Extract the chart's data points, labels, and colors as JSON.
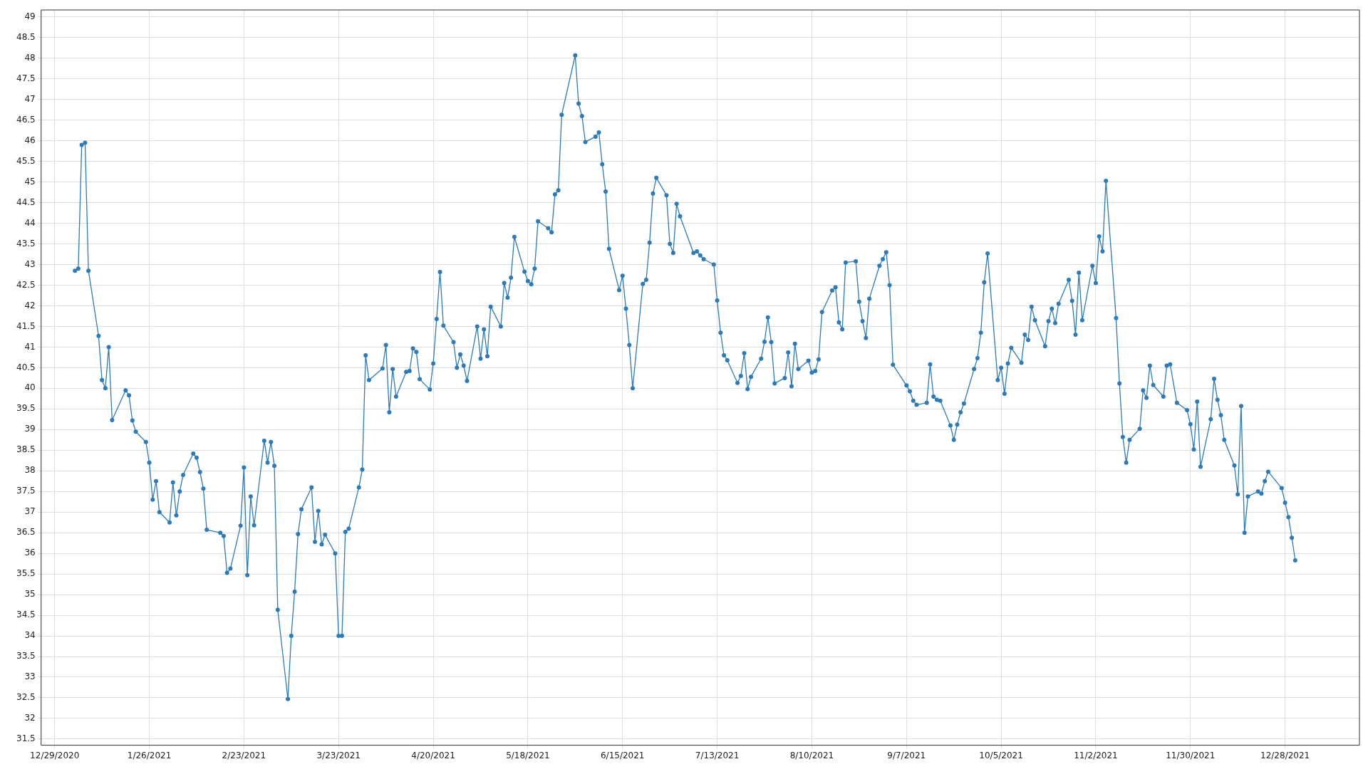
{
  "chart_data": {
    "type": "line",
    "marker": "circle",
    "grid": true,
    "xlim": [
      "2020-12-25",
      "2022-01-19"
    ],
    "xticks": [
      {
        "value": "2020-12-29",
        "label": "12/29/2020"
      },
      {
        "value": "2021-01-26",
        "label": "1/26/2021"
      },
      {
        "value": "2021-02-23",
        "label": "2/23/2021"
      },
      {
        "value": "2021-03-23",
        "label": "3/23/2021"
      },
      {
        "value": "2021-04-20",
        "label": "4/20/2021"
      },
      {
        "value": "2021-05-18",
        "label": "5/18/2021"
      },
      {
        "value": "2021-06-15",
        "label": "6/15/2021"
      },
      {
        "value": "2021-07-13",
        "label": "7/13/2021"
      },
      {
        "value": "2021-08-10",
        "label": "8/10/2021"
      },
      {
        "value": "2021-09-07",
        "label": "9/7/2021"
      },
      {
        "value": "2021-10-05",
        "label": "10/5/2021"
      },
      {
        "value": "2021-11-02",
        "label": "11/2/2021"
      },
      {
        "value": "2021-11-30",
        "label": "11/30/2021"
      },
      {
        "value": "2021-12-28",
        "label": "12/28/2021"
      }
    ],
    "ylim": [
      31.35,
      49.17
    ],
    "yticks": [
      31.5,
      32,
      32.5,
      33,
      33.5,
      34,
      34.5,
      35,
      35.5,
      36,
      36.5,
      37,
      37.5,
      38,
      38.5,
      39,
      39.5,
      40,
      40.5,
      41,
      41.5,
      42,
      42.5,
      43,
      43.5,
      44,
      44.5,
      45,
      45.5,
      46,
      46.5,
      47,
      47.5,
      48,
      48.5,
      49
    ],
    "series": [
      {
        "color": "#2b7bba",
        "x": [
          "2021-01-04",
          "2021-01-05",
          "2021-01-06",
          "2021-01-07",
          "2021-01-08",
          "2021-01-11",
          "2021-01-12",
          "2021-01-13",
          "2021-01-14",
          "2021-01-15",
          "2021-01-19",
          "2021-01-20",
          "2021-01-21",
          "2021-01-22",
          "2021-01-25",
          "2021-01-26",
          "2021-01-27",
          "2021-01-28",
          "2021-01-29",
          "2021-02-01",
          "2021-02-02",
          "2021-02-03",
          "2021-02-04",
          "2021-02-05",
          "2021-02-08",
          "2021-02-09",
          "2021-02-10",
          "2021-02-11",
          "2021-02-12",
          "2021-02-16",
          "2021-02-17",
          "2021-02-18",
          "2021-02-19",
          "2021-02-22",
          "2021-02-23",
          "2021-02-24",
          "2021-02-25",
          "2021-02-26",
          "2021-03-01",
          "2021-03-02",
          "2021-03-03",
          "2021-03-04",
          "2021-03-05",
          "2021-03-08",
          "2021-03-09",
          "2021-03-10",
          "2021-03-11",
          "2021-03-12",
          "2021-03-15",
          "2021-03-16",
          "2021-03-17",
          "2021-03-18",
          "2021-03-19",
          "2021-03-22",
          "2021-03-23",
          "2021-03-24",
          "2021-03-25",
          "2021-03-26",
          "2021-03-29",
          "2021-03-30",
          "2021-03-31",
          "2021-04-01",
          "2021-04-05",
          "2021-04-06",
          "2021-04-07",
          "2021-04-08",
          "2021-04-09",
          "2021-04-12",
          "2021-04-13",
          "2021-04-14",
          "2021-04-15",
          "2021-04-16",
          "2021-04-19",
          "2021-04-20",
          "2021-04-21",
          "2021-04-22",
          "2021-04-23",
          "2021-04-26",
          "2021-04-27",
          "2021-04-28",
          "2021-04-29",
          "2021-04-30",
          "2021-05-03",
          "2021-05-04",
          "2021-05-05",
          "2021-05-06",
          "2021-05-07",
          "2021-05-10",
          "2021-05-11",
          "2021-05-12",
          "2021-05-13",
          "2021-05-14",
          "2021-05-17",
          "2021-05-18",
          "2021-05-19",
          "2021-05-20",
          "2021-05-21",
          "2021-05-24",
          "2021-05-25",
          "2021-05-26",
          "2021-05-27",
          "2021-05-28",
          "2021-06-01",
          "2021-06-02",
          "2021-06-03",
          "2021-06-04",
          "2021-06-07",
          "2021-06-08",
          "2021-06-09",
          "2021-06-10",
          "2021-06-11",
          "2021-06-14",
          "2021-06-15",
          "2021-06-16",
          "2021-06-17",
          "2021-06-18",
          "2021-06-21",
          "2021-06-22",
          "2021-06-23",
          "2021-06-24",
          "2021-06-25",
          "2021-06-28",
          "2021-06-29",
          "2021-06-30",
          "2021-07-01",
          "2021-07-02",
          "2021-07-06",
          "2021-07-07",
          "2021-07-08",
          "2021-07-09",
          "2021-07-12",
          "2021-07-13",
          "2021-07-14",
          "2021-07-15",
          "2021-07-16",
          "2021-07-19",
          "2021-07-20",
          "2021-07-21",
          "2021-07-22",
          "2021-07-23",
          "2021-07-26",
          "2021-07-27",
          "2021-07-28",
          "2021-07-29",
          "2021-07-30",
          "2021-08-02",
          "2021-08-03",
          "2021-08-04",
          "2021-08-05",
          "2021-08-06",
          "2021-08-09",
          "2021-08-10",
          "2021-08-11",
          "2021-08-12",
          "2021-08-13",
          "2021-08-16",
          "2021-08-17",
          "2021-08-18",
          "2021-08-19",
          "2021-08-20",
          "2021-08-23",
          "2021-08-24",
          "2021-08-25",
          "2021-08-26",
          "2021-08-27",
          "2021-08-30",
          "2021-08-31",
          "2021-09-01",
          "2021-09-02",
          "2021-09-03",
          "2021-09-07",
          "2021-09-08",
          "2021-09-09",
          "2021-09-10",
          "2021-09-13",
          "2021-09-14",
          "2021-09-15",
          "2021-09-16",
          "2021-09-17",
          "2021-09-20",
          "2021-09-21",
          "2021-09-22",
          "2021-09-23",
          "2021-09-24",
          "2021-09-27",
          "2021-09-28",
          "2021-09-29",
          "2021-09-30",
          "2021-10-01",
          "2021-10-04",
          "2021-10-05",
          "2021-10-06",
          "2021-10-07",
          "2021-10-08",
          "2021-10-11",
          "2021-10-12",
          "2021-10-13",
          "2021-10-14",
          "2021-10-15",
          "2021-10-18",
          "2021-10-19",
          "2021-10-20",
          "2021-10-21",
          "2021-10-22",
          "2021-10-25",
          "2021-10-26",
          "2021-10-27",
          "2021-10-28",
          "2021-10-29",
          "2021-11-01",
          "2021-11-02",
          "2021-11-03",
          "2021-11-04",
          "2021-11-05",
          "2021-11-08",
          "2021-11-09",
          "2021-11-10",
          "2021-11-11",
          "2021-11-12",
          "2021-11-15",
          "2021-11-16",
          "2021-11-17",
          "2021-11-18",
          "2021-11-19",
          "2021-11-22",
          "2021-11-23",
          "2021-11-24",
          "2021-11-26",
          "2021-11-29",
          "2021-11-30",
          "2021-12-01",
          "2021-12-02",
          "2021-12-03",
          "2021-12-06",
          "2021-12-07",
          "2021-12-08",
          "2021-12-09",
          "2021-12-10",
          "2021-12-13",
          "2021-12-14",
          "2021-12-15",
          "2021-12-16",
          "2021-12-17",
          "2021-12-20",
          "2021-12-21",
          "2021-12-22",
          "2021-12-23",
          "2021-12-27",
          "2021-12-28",
          "2021-12-29",
          "2021-12-30",
          "2021-12-31"
        ],
        "values": [
          42.85,
          42.9,
          45.9,
          45.95,
          42.85,
          41.27,
          40.2,
          40.0,
          41.0,
          39.23,
          39.95,
          39.83,
          39.22,
          38.95,
          38.7,
          38.2,
          37.3,
          37.75,
          37.0,
          36.75,
          37.72,
          36.92,
          37.5,
          37.9,
          38.42,
          38.32,
          37.97,
          37.57,
          36.57,
          36.5,
          36.42,
          35.53,
          35.63,
          36.67,
          38.08,
          35.47,
          37.38,
          36.68,
          38.73,
          38.2,
          38.7,
          38.12,
          34.63,
          32.47,
          34.0,
          35.07,
          36.47,
          37.07,
          37.6,
          36.28,
          37.03,
          36.22,
          36.45,
          36.0,
          34.0,
          34.0,
          36.52,
          36.6,
          37.6,
          38.03,
          40.8,
          40.2,
          40.48,
          41.05,
          39.42,
          40.47,
          39.8,
          40.4,
          40.42,
          40.97,
          40.88,
          40.22,
          39.97,
          40.6,
          41.68,
          42.82,
          41.52,
          41.12,
          40.5,
          40.82,
          40.55,
          40.18,
          41.5,
          40.72,
          41.43,
          40.78,
          41.98,
          41.5,
          42.55,
          42.2,
          42.68,
          43.67,
          42.83,
          42.6,
          42.52,
          42.9,
          44.05,
          43.88,
          43.78,
          44.7,
          44.8,
          46.63,
          48.07,
          46.9,
          46.6,
          45.97,
          46.1,
          46.2,
          45.43,
          44.77,
          43.38,
          42.38,
          42.73,
          41.93,
          41.05,
          40.0,
          42.53,
          42.63,
          43.53,
          44.72,
          45.1,
          44.68,
          43.5,
          43.28,
          44.47,
          44.17,
          43.28,
          43.32,
          43.22,
          43.13,
          43.0,
          42.13,
          41.35,
          40.8,
          40.68,
          40.13,
          40.3,
          40.85,
          39.98,
          40.28,
          40.72,
          41.13,
          41.72,
          41.12,
          40.12,
          40.25,
          40.87,
          40.05,
          41.08,
          40.47,
          40.67,
          40.38,
          40.42,
          40.7,
          41.85,
          42.37,
          42.45,
          41.6,
          41.43,
          43.05,
          43.08,
          42.1,
          41.63,
          41.22,
          42.17,
          42.97,
          43.13,
          43.3,
          42.5,
          40.57,
          40.07,
          39.93,
          39.7,
          39.6,
          39.65,
          40.58,
          39.8,
          39.72,
          39.7,
          39.1,
          38.75,
          39.12,
          39.42,
          39.63,
          40.47,
          40.73,
          41.35,
          42.57,
          43.27,
          40.2,
          40.5,
          39.87,
          40.6,
          40.98,
          40.62,
          41.3,
          41.17,
          41.98,
          41.65,
          41.02,
          41.63,
          41.93,
          41.58,
          42.05,
          42.63,
          42.12,
          41.3,
          42.8,
          41.65,
          42.97,
          42.55,
          43.68,
          43.32,
          45.03,
          41.7,
          40.12,
          38.82,
          38.2,
          38.75,
          39.02,
          39.95,
          39.77,
          40.55,
          40.08,
          39.8,
          40.55,
          40.58,
          39.65,
          39.47,
          39.13,
          38.52,
          39.68,
          38.1,
          39.25,
          40.23,
          39.72,
          39.35,
          38.75,
          38.13,
          37.43,
          39.57,
          36.5,
          37.38,
          37.5,
          37.45,
          37.75,
          37.98,
          37.58,
          37.23,
          36.88,
          36.38,
          35.83
        ]
      }
    ]
  }
}
